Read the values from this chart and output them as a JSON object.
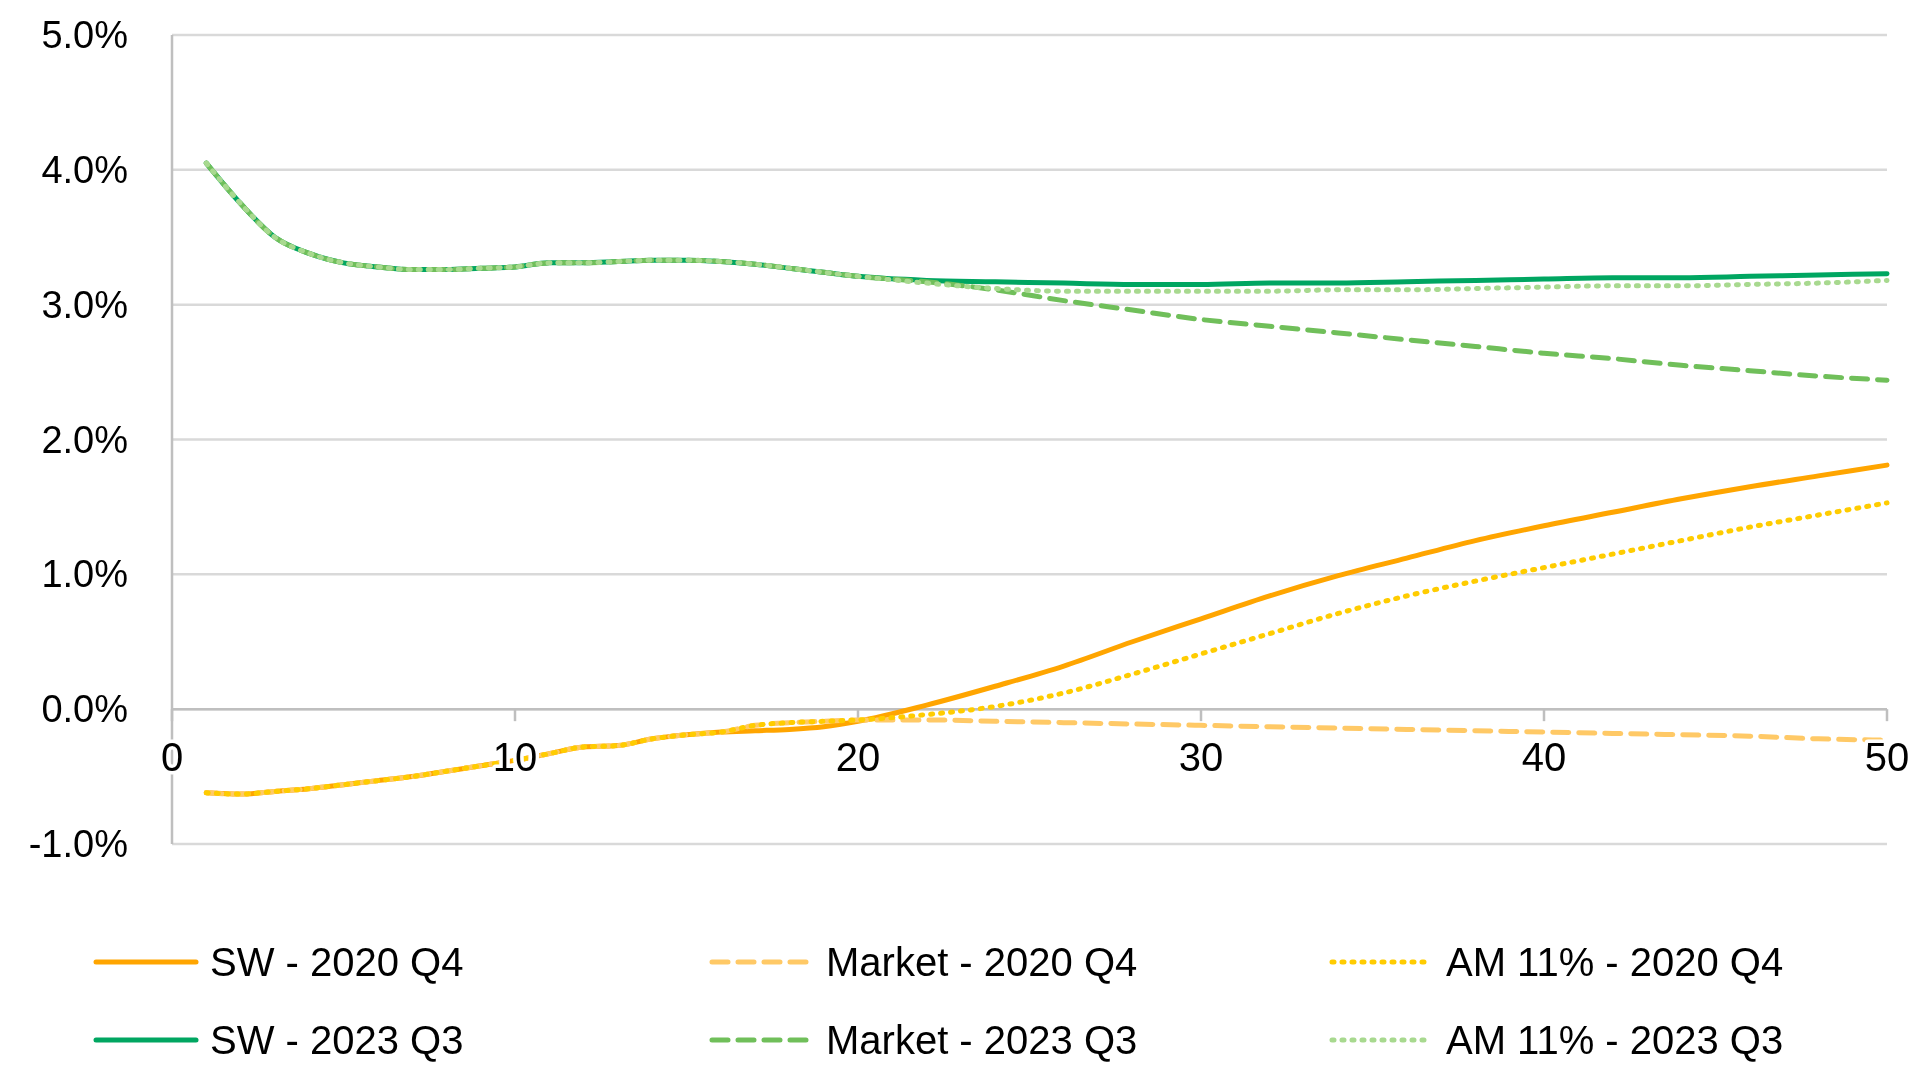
{
  "chart_data": {
    "type": "line",
    "x": [
      1,
      2,
      3,
      4,
      5,
      6,
      7,
      8,
      9,
      10,
      11,
      12,
      13,
      14,
      15,
      16,
      17,
      18,
      19,
      20,
      22,
      24,
      26,
      28,
      30,
      32,
      34,
      36,
      38,
      40,
      42,
      44,
      46,
      48,
      50
    ],
    "xlim": [
      0,
      50
    ],
    "xticks": [
      0,
      10,
      20,
      30,
      40,
      50
    ],
    "ylim": [
      -1,
      5
    ],
    "yticks": [
      {
        "value": -1,
        "label": "-1.0%"
      },
      {
        "value": 0,
        "label": "0.0%"
      },
      {
        "value": 1,
        "label": "1.0%"
      },
      {
        "value": 2,
        "label": "2.0%"
      },
      {
        "value": 3,
        "label": "3.0%"
      },
      {
        "value": 4,
        "label": "4.0%"
      },
      {
        "value": 5,
        "label": "5.0%"
      }
    ],
    "grid": "y",
    "legend": "bottom",
    "marker": "none",
    "series": [
      {
        "name": "SW - 2020 Q4",
        "color": "#ffa500",
        "line_style": "solid",
        "values": [
          -0.62,
          -0.63,
          -0.61,
          -0.59,
          -0.56,
          -0.53,
          -0.5,
          -0.46,
          -0.42,
          -0.38,
          -0.33,
          -0.28,
          -0.27,
          -0.22,
          -0.19,
          -0.17,
          -0.16,
          -0.15,
          -0.13,
          -0.09,
          0.03,
          0.17,
          0.32,
          0.5,
          0.67,
          0.84,
          0.99,
          1.12,
          1.25,
          1.36,
          1.46,
          1.56,
          1.65,
          1.73,
          1.81
        ]
      },
      {
        "name": "Market - 2020 Q4",
        "color": "#ffc966",
        "line_style": "dashed",
        "values": [
          -0.62,
          -0.63,
          -0.61,
          -0.59,
          -0.56,
          -0.53,
          -0.5,
          -0.46,
          -0.42,
          -0.38,
          -0.33,
          -0.28,
          -0.27,
          -0.22,
          -0.19,
          -0.17,
          -0.12,
          -0.1,
          -0.09,
          -0.08,
          -0.08,
          -0.09,
          -0.1,
          -0.11,
          -0.12,
          -0.13,
          -0.14,
          -0.15,
          -0.16,
          -0.17,
          -0.18,
          -0.19,
          -0.2,
          -0.22,
          -0.23
        ]
      },
      {
        "name": "AM 11% - 2020 Q4",
        "color": "#ffcc00",
        "line_style": "dotted",
        "values": [
          -0.62,
          -0.63,
          -0.61,
          -0.59,
          -0.56,
          -0.53,
          -0.5,
          -0.46,
          -0.42,
          -0.38,
          -0.33,
          -0.28,
          -0.27,
          -0.22,
          -0.19,
          -0.17,
          -0.12,
          -0.1,
          -0.09,
          -0.08,
          -0.04,
          0.02,
          0.12,
          0.26,
          0.41,
          0.56,
          0.71,
          0.84,
          0.95,
          1.05,
          1.15,
          1.25,
          1.35,
          1.44,
          1.53
        ]
      },
      {
        "name": "SW - 2023 Q3",
        "color": "#00a661",
        "line_style": "solid",
        "values": [
          4.05,
          3.75,
          3.5,
          3.38,
          3.31,
          3.28,
          3.26,
          3.26,
          3.27,
          3.28,
          3.31,
          3.31,
          3.32,
          3.33,
          3.33,
          3.32,
          3.3,
          3.27,
          3.24,
          3.21,
          3.18,
          3.17,
          3.16,
          3.15,
          3.15,
          3.16,
          3.16,
          3.17,
          3.18,
          3.19,
          3.2,
          3.2,
          3.21,
          3.22,
          3.23
        ]
      },
      {
        "name": "Market - 2023 Q3",
        "color": "#70bf5a",
        "line_style": "dashed",
        "values": [
          4.05,
          3.75,
          3.5,
          3.38,
          3.31,
          3.28,
          3.26,
          3.26,
          3.27,
          3.28,
          3.31,
          3.31,
          3.32,
          3.33,
          3.33,
          3.32,
          3.3,
          3.27,
          3.24,
          3.21,
          3.17,
          3.11,
          3.03,
          2.96,
          2.89,
          2.84,
          2.79,
          2.74,
          2.69,
          2.64,
          2.6,
          2.55,
          2.51,
          2.47,
          2.44
        ]
      },
      {
        "name": "AM 11% - 2023 Q3",
        "color": "#a8d98f",
        "line_style": "dotted",
        "values": [
          4.05,
          3.75,
          3.5,
          3.38,
          3.31,
          3.28,
          3.26,
          3.26,
          3.27,
          3.28,
          3.31,
          3.31,
          3.32,
          3.33,
          3.33,
          3.32,
          3.3,
          3.27,
          3.24,
          3.21,
          3.16,
          3.12,
          3.1,
          3.1,
          3.1,
          3.1,
          3.11,
          3.11,
          3.12,
          3.13,
          3.14,
          3.14,
          3.15,
          3.16,
          3.18
        ]
      }
    ]
  }
}
